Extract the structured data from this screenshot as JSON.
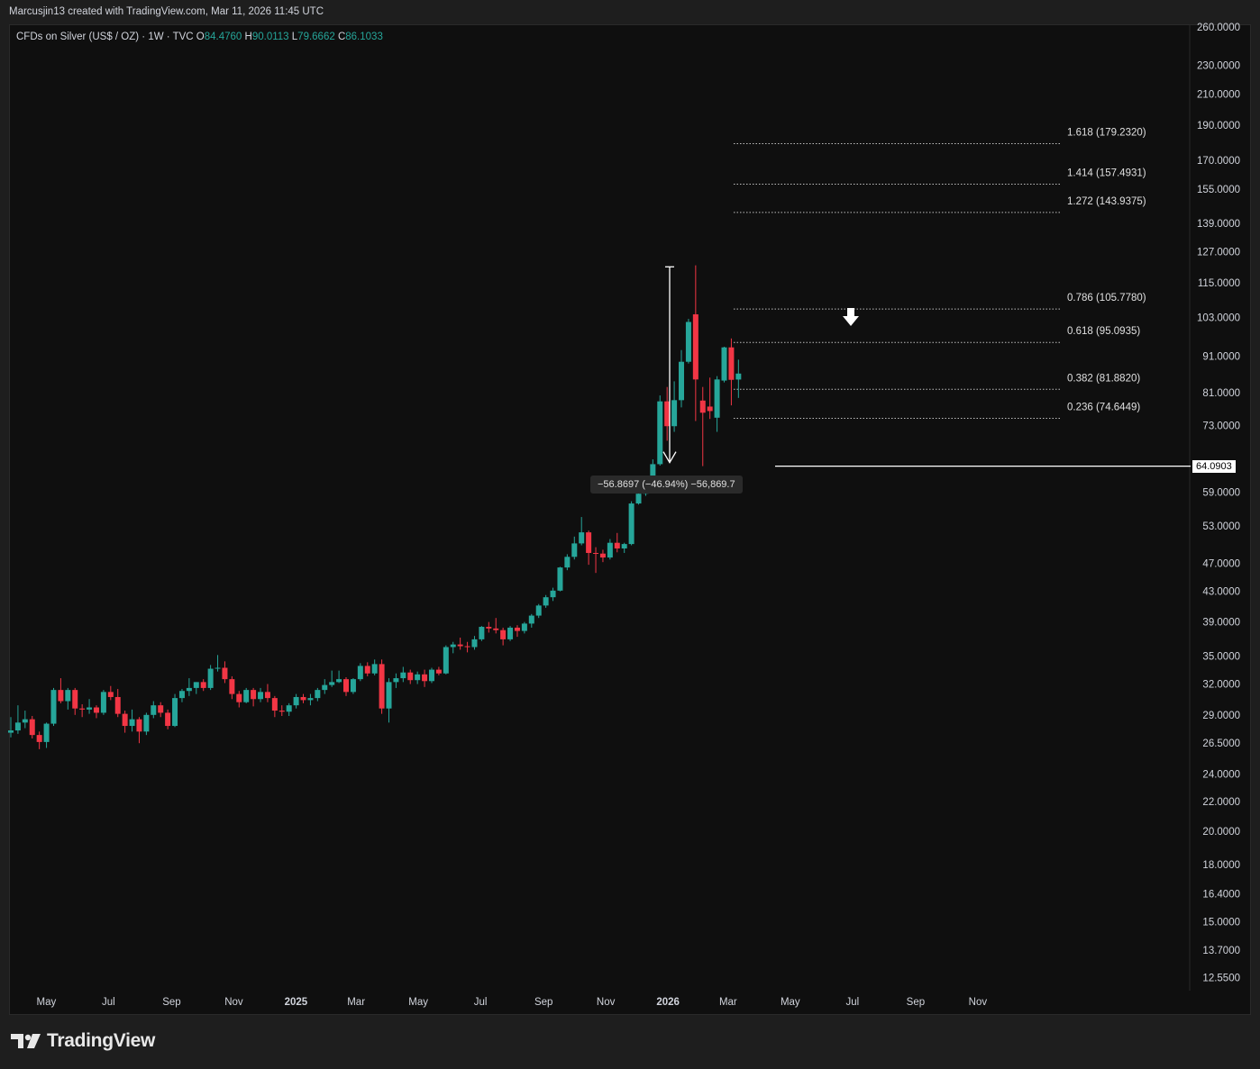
{
  "header": {
    "credit": "Marcusjin13 created with TradingView.com, Mar 11, 2026 11:45 UTC"
  },
  "legend": {
    "symbol": "CFDs on Silver (US$ / OZ) · 1W · TVC",
    "o_label": "O",
    "o_value": "84.4760",
    "h_label": "H",
    "h_value": "90.0113",
    "l_label": "L",
    "l_value": "79.6662",
    "c_label": "C",
    "c_value": "86.1033"
  },
  "measure": {
    "label": "−56.8697 (−46.94%) −56,869.7"
  },
  "price_tag": {
    "label": "64.0903"
  },
  "footer": {
    "brand": "TradingView"
  },
  "colors": {
    "up": "#26a69a",
    "down": "#f23645",
    "background": "#0f0f0f",
    "text": "#d1d4dc"
  },
  "chart_data": {
    "type": "candlestick",
    "y_scale": "log",
    "ylim": [
      12.0,
      262.0
    ],
    "y_ticks": [
      "260.0000",
      "230.0000",
      "210.0000",
      "190.0000",
      "170.0000",
      "155.0000",
      "139.0000",
      "127.0000",
      "115.0000",
      "103.0000",
      "91.0000",
      "81.0000",
      "73.0000",
      "64.0903",
      "59.0000",
      "53.0000",
      "47.0000",
      "43.0000",
      "39.0000",
      "35.0000",
      "32.0000",
      "29.0000",
      "26.5000",
      "24.0000",
      "22.0000",
      "20.0000",
      "18.0000",
      "16.4000",
      "15.0000",
      "13.7000",
      "12.5500"
    ],
    "x_ticks": [
      "May",
      "Jul",
      "Sep",
      "Nov",
      "2025",
      "Mar",
      "May",
      "Jul",
      "Sep",
      "Nov",
      "2026",
      "Mar",
      "May",
      "Jul",
      "Sep",
      "Nov"
    ],
    "fib_levels": [
      {
        "ratio": "1.618",
        "price": 179.232,
        "label": "1.618 (179.2320)"
      },
      {
        "ratio": "1.414",
        "price": 157.4931,
        "label": "1.414 (157.4931)"
      },
      {
        "ratio": "1.272",
        "price": 143.9375,
        "label": "1.272 (143.9375)"
      },
      {
        "ratio": "0.786",
        "price": 105.778,
        "label": "0.786 (105.7780)"
      },
      {
        "ratio": "0.618",
        "price": 95.0935,
        "label": "0.618 (95.0935)"
      },
      {
        "ratio": "0.382",
        "price": 81.882,
        "label": "0.382 (81.8820)"
      },
      {
        "ratio": "0.236",
        "price": 74.6449,
        "label": "0.236 (74.6449)"
      }
    ],
    "horizontal_line": 64.0903,
    "measure_from": 121.0,
    "measure_to": 64.0903,
    "candles": [
      {
        "date": "2024-04-05",
        "o": 27.4,
        "h": 28.8,
        "l": 27.0,
        "c": 27.6
      },
      {
        "date": "2024-04-12",
        "o": 27.6,
        "h": 29.9,
        "l": 27.3,
        "c": 28.3
      },
      {
        "date": "2024-04-19",
        "o": 28.3,
        "h": 29.4,
        "l": 27.8,
        "c": 28.6
      },
      {
        "date": "2024-04-26",
        "o": 28.6,
        "h": 28.9,
        "l": 26.9,
        "c": 27.2
      },
      {
        "date": "2024-05-03",
        "o": 27.2,
        "h": 27.5,
        "l": 26.0,
        "c": 26.6
      },
      {
        "date": "2024-05-10",
        "o": 26.6,
        "h": 28.3,
        "l": 26.1,
        "c": 28.2
      },
      {
        "date": "2024-05-17",
        "o": 28.2,
        "h": 31.6,
        "l": 28.0,
        "c": 31.4
      },
      {
        "date": "2024-05-24",
        "o": 31.4,
        "h": 32.6,
        "l": 30.1,
        "c": 30.3
      },
      {
        "date": "2024-05-31",
        "o": 30.3,
        "h": 31.6,
        "l": 29.5,
        "c": 31.4
      },
      {
        "date": "2024-06-07",
        "o": 31.4,
        "h": 31.6,
        "l": 29.0,
        "c": 29.6
      },
      {
        "date": "2024-06-14",
        "o": 29.6,
        "h": 30.0,
        "l": 28.8,
        "c": 29.5
      },
      {
        "date": "2024-06-21",
        "o": 29.5,
        "h": 30.5,
        "l": 29.1,
        "c": 29.7
      },
      {
        "date": "2024-06-28",
        "o": 29.7,
        "h": 29.9,
        "l": 28.7,
        "c": 29.2
      },
      {
        "date": "2024-07-05",
        "o": 29.2,
        "h": 31.4,
        "l": 29.0,
        "c": 31.2
      },
      {
        "date": "2024-07-12",
        "o": 31.2,
        "h": 31.8,
        "l": 30.4,
        "c": 30.7
      },
      {
        "date": "2024-07-19",
        "o": 30.7,
        "h": 31.5,
        "l": 28.8,
        "c": 29.1
      },
      {
        "date": "2024-07-26",
        "o": 29.1,
        "h": 29.4,
        "l": 27.4,
        "c": 28.0
      },
      {
        "date": "2024-08-02",
        "o": 28.0,
        "h": 29.5,
        "l": 27.5,
        "c": 28.6
      },
      {
        "date": "2024-08-09",
        "o": 28.6,
        "h": 28.8,
        "l": 26.5,
        "c": 27.5
      },
      {
        "date": "2024-08-16",
        "o": 27.5,
        "h": 29.2,
        "l": 27.2,
        "c": 29.0
      },
      {
        "date": "2024-08-23",
        "o": 29.0,
        "h": 30.3,
        "l": 28.7,
        "c": 29.9
      },
      {
        "date": "2024-08-30",
        "o": 29.9,
        "h": 30.2,
        "l": 28.8,
        "c": 29.2
      },
      {
        "date": "2024-09-06",
        "o": 29.2,
        "h": 29.5,
        "l": 27.7,
        "c": 28.0
      },
      {
        "date": "2024-09-13",
        "o": 28.0,
        "h": 31.0,
        "l": 27.9,
        "c": 30.6
      },
      {
        "date": "2024-09-20",
        "o": 30.6,
        "h": 31.5,
        "l": 30.2,
        "c": 31.3
      },
      {
        "date": "2024-09-27",
        "o": 31.3,
        "h": 32.6,
        "l": 30.8,
        "c": 31.6
      },
      {
        "date": "2024-10-04",
        "o": 31.6,
        "h": 32.2,
        "l": 31.0,
        "c": 32.2
      },
      {
        "date": "2024-10-11",
        "o": 32.2,
        "h": 32.5,
        "l": 31.3,
        "c": 31.6
      },
      {
        "date": "2024-10-18",
        "o": 31.6,
        "h": 34.0,
        "l": 31.4,
        "c": 33.6
      },
      {
        "date": "2024-10-25",
        "o": 33.6,
        "h": 35.1,
        "l": 33.3,
        "c": 33.7
      },
      {
        "date": "2024-11-01",
        "o": 33.7,
        "h": 34.4,
        "l": 32.1,
        "c": 32.5
      },
      {
        "date": "2024-11-08",
        "o": 32.5,
        "h": 32.8,
        "l": 30.5,
        "c": 31.0
      },
      {
        "date": "2024-11-15",
        "o": 31.0,
        "h": 31.3,
        "l": 29.7,
        "c": 30.2
      },
      {
        "date": "2024-11-22",
        "o": 30.2,
        "h": 31.6,
        "l": 30.1,
        "c": 31.4
      },
      {
        "date": "2024-11-29",
        "o": 31.4,
        "h": 31.6,
        "l": 29.8,
        "c": 30.5
      },
      {
        "date": "2024-12-06",
        "o": 30.5,
        "h": 31.6,
        "l": 30.2,
        "c": 31.2
      },
      {
        "date": "2024-12-13",
        "o": 31.2,
        "h": 32.0,
        "l": 30.2,
        "c": 30.6
      },
      {
        "date": "2024-12-20",
        "o": 30.6,
        "h": 30.8,
        "l": 28.8,
        "c": 29.4
      },
      {
        "date": "2024-12-27",
        "o": 29.4,
        "h": 29.9,
        "l": 28.9,
        "c": 29.3
      },
      {
        "date": "2025-01-03",
        "o": 29.3,
        "h": 30.1,
        "l": 28.9,
        "c": 29.9
      },
      {
        "date": "2025-01-10",
        "o": 29.9,
        "h": 31.0,
        "l": 29.6,
        "c": 30.7
      },
      {
        "date": "2025-01-17",
        "o": 30.7,
        "h": 31.0,
        "l": 30.1,
        "c": 30.4
      },
      {
        "date": "2025-01-24",
        "o": 30.4,
        "h": 31.0,
        "l": 29.9,
        "c": 30.6
      },
      {
        "date": "2025-01-31",
        "o": 30.6,
        "h": 31.6,
        "l": 30.3,
        "c": 31.4
      },
      {
        "date": "2025-02-07",
        "o": 31.4,
        "h": 32.5,
        "l": 31.0,
        "c": 31.9
      },
      {
        "date": "2025-02-14",
        "o": 31.9,
        "h": 33.4,
        "l": 31.7,
        "c": 32.2
      },
      {
        "date": "2025-02-21",
        "o": 32.2,
        "h": 33.4,
        "l": 32.1,
        "c": 32.5
      },
      {
        "date": "2025-02-28",
        "o": 32.5,
        "h": 32.7,
        "l": 30.8,
        "c": 31.2
      },
      {
        "date": "2025-03-07",
        "o": 31.2,
        "h": 32.6,
        "l": 31.0,
        "c": 32.5
      },
      {
        "date": "2025-03-14",
        "o": 32.5,
        "h": 34.2,
        "l": 32.3,
        "c": 33.9
      },
      {
        "date": "2025-03-21",
        "o": 33.9,
        "h": 34.3,
        "l": 32.8,
        "c": 33.1
      },
      {
        "date": "2025-03-28",
        "o": 33.1,
        "h": 34.6,
        "l": 32.9,
        "c": 34.1
      },
      {
        "date": "2025-04-04",
        "o": 34.1,
        "h": 34.6,
        "l": 29.1,
        "c": 29.6
      },
      {
        "date": "2025-04-11",
        "o": 29.6,
        "h": 32.6,
        "l": 28.3,
        "c": 32.2
      },
      {
        "date": "2025-04-18",
        "o": 32.2,
        "h": 33.1,
        "l": 31.6,
        "c": 32.6
      },
      {
        "date": "2025-04-25",
        "o": 32.6,
        "h": 33.8,
        "l": 32.2,
        "c": 33.2
      },
      {
        "date": "2025-05-02",
        "o": 33.2,
        "h": 33.5,
        "l": 32.0,
        "c": 32.4
      },
      {
        "date": "2025-05-09",
        "o": 32.4,
        "h": 33.3,
        "l": 32.0,
        "c": 33.0
      },
      {
        "date": "2025-05-16",
        "o": 33.0,
        "h": 33.5,
        "l": 31.7,
        "c": 32.3
      },
      {
        "date": "2025-05-23",
        "o": 32.3,
        "h": 33.7,
        "l": 32.1,
        "c": 33.5
      },
      {
        "date": "2025-05-30",
        "o": 33.5,
        "h": 33.8,
        "l": 32.9,
        "c": 33.1
      },
      {
        "date": "2025-06-06",
        "o": 33.1,
        "h": 36.2,
        "l": 33.0,
        "c": 36.0
      },
      {
        "date": "2025-06-13",
        "o": 36.0,
        "h": 36.6,
        "l": 35.3,
        "c": 36.3
      },
      {
        "date": "2025-06-20",
        "o": 36.3,
        "h": 37.1,
        "l": 35.7,
        "c": 36.1
      },
      {
        "date": "2025-06-27",
        "o": 36.1,
        "h": 36.6,
        "l": 35.4,
        "c": 36.0
      },
      {
        "date": "2025-07-04",
        "o": 36.0,
        "h": 37.3,
        "l": 35.7,
        "c": 36.9
      },
      {
        "date": "2025-07-11",
        "o": 36.9,
        "h": 38.5,
        "l": 36.7,
        "c": 38.4
      },
      {
        "date": "2025-07-18",
        "o": 38.4,
        "h": 39.0,
        "l": 37.7,
        "c": 38.2
      },
      {
        "date": "2025-07-25",
        "o": 38.2,
        "h": 39.5,
        "l": 37.6,
        "c": 38.0
      },
      {
        "date": "2025-08-01",
        "o": 38.0,
        "h": 38.3,
        "l": 36.2,
        "c": 36.9
      },
      {
        "date": "2025-08-08",
        "o": 36.9,
        "h": 38.5,
        "l": 36.7,
        "c": 38.3
      },
      {
        "date": "2025-08-15",
        "o": 38.3,
        "h": 38.6,
        "l": 37.2,
        "c": 37.9
      },
      {
        "date": "2025-08-22",
        "o": 37.9,
        "h": 39.0,
        "l": 37.6,
        "c": 38.8
      },
      {
        "date": "2025-08-29",
        "o": 38.8,
        "h": 40.0,
        "l": 38.3,
        "c": 39.8
      },
      {
        "date": "2025-09-05",
        "o": 39.8,
        "h": 41.3,
        "l": 39.5,
        "c": 41.1
      },
      {
        "date": "2025-09-12",
        "o": 41.1,
        "h": 42.5,
        "l": 40.8,
        "c": 42.2
      },
      {
        "date": "2025-09-19",
        "o": 42.2,
        "h": 43.5,
        "l": 41.7,
        "c": 43.1
      },
      {
        "date": "2025-09-26",
        "o": 43.1,
        "h": 46.5,
        "l": 43.0,
        "c": 46.4
      },
      {
        "date": "2025-10-03",
        "o": 46.4,
        "h": 48.4,
        "l": 46.0,
        "c": 48.0
      },
      {
        "date": "2025-10-10",
        "o": 48.0,
        "h": 51.2,
        "l": 47.6,
        "c": 50.1
      },
      {
        "date": "2025-10-17",
        "o": 50.1,
        "h": 54.5,
        "l": 49.8,
        "c": 51.9
      },
      {
        "date": "2025-10-24",
        "o": 51.9,
        "h": 52.2,
        "l": 46.8,
        "c": 48.6
      },
      {
        "date": "2025-10-31",
        "o": 48.6,
        "h": 49.5,
        "l": 45.6,
        "c": 48.5
      },
      {
        "date": "2025-11-07",
        "o": 48.5,
        "h": 49.1,
        "l": 47.2,
        "c": 47.9
      },
      {
        "date": "2025-11-14",
        "o": 47.9,
        "h": 50.8,
        "l": 47.6,
        "c": 50.2
      },
      {
        "date": "2025-11-21",
        "o": 50.2,
        "h": 51.8,
        "l": 48.7,
        "c": 49.3
      },
      {
        "date": "2025-11-28",
        "o": 49.3,
        "h": 50.2,
        "l": 48.6,
        "c": 50.0
      },
      {
        "date": "2025-12-05",
        "o": 50.0,
        "h": 57.3,
        "l": 49.8,
        "c": 56.9
      },
      {
        "date": "2025-12-12",
        "o": 56.9,
        "h": 62.2,
        "l": 56.7,
        "c": 58.7
      },
      {
        "date": "2025-12-19",
        "o": 58.7,
        "h": 61.2,
        "l": 58.3,
        "c": 60.9
      },
      {
        "date": "2025-12-26",
        "o": 60.9,
        "h": 65.5,
        "l": 60.5,
        "c": 64.5
      },
      {
        "date": "2026-01-02",
        "o": 64.5,
        "h": 80.3,
        "l": 64.2,
        "c": 78.8
      },
      {
        "date": "2026-01-09",
        "o": 78.8,
        "h": 82.5,
        "l": 69.5,
        "c": 72.8
      },
      {
        "date": "2026-01-16",
        "o": 72.8,
        "h": 84.0,
        "l": 71.5,
        "c": 79.1
      },
      {
        "date": "2026-01-23",
        "o": 79.1,
        "h": 92.8,
        "l": 77.3,
        "c": 89.4
      },
      {
        "date": "2026-01-30",
        "o": 89.4,
        "h": 102.5,
        "l": 88.9,
        "c": 101.5
      },
      {
        "date": "2026-02-06",
        "o": 104.0,
        "h": 121.6,
        "l": 74.0,
        "c": 84.5
      },
      {
        "date": "2026-02-13",
        "o": 79.0,
        "h": 82.5,
        "l": 64.1,
        "c": 76.0
      },
      {
        "date": "2026-02-20",
        "o": 77.5,
        "h": 85.0,
        "l": 74.5,
        "c": 76.4
      },
      {
        "date": "2026-02-27",
        "o": 74.8,
        "h": 85.4,
        "l": 71.5,
        "c": 84.5
      },
      {
        "date": "2026-03-06",
        "o": 84.2,
        "h": 93.8,
        "l": 83.7,
        "c": 93.6
      },
      {
        "date": "2026-03-13",
        "o": 93.6,
        "h": 96.3,
        "l": 77.8,
        "c": 84.4
      },
      {
        "date": "2026-03-20",
        "o": 84.476,
        "h": 90.0113,
        "l": 79.6662,
        "c": 86.1033
      }
    ]
  }
}
